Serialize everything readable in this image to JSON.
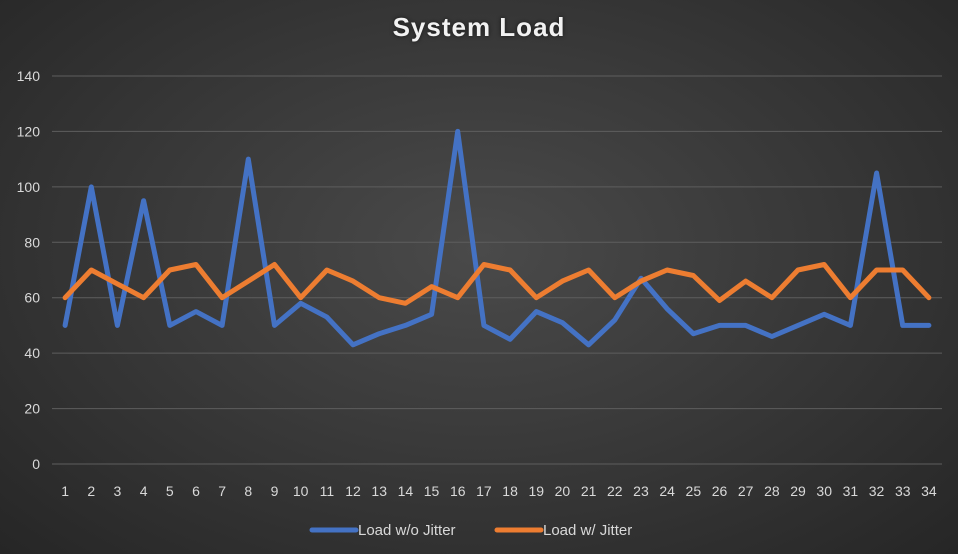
{
  "chart_data": {
    "type": "line",
    "title": "System Load",
    "xlabel": "",
    "ylabel": "",
    "ylim": [
      0,
      140
    ],
    "yticks": [
      0,
      20,
      40,
      60,
      80,
      100,
      120,
      140
    ],
    "categories": [
      "1",
      "2",
      "3",
      "4",
      "5",
      "6",
      "7",
      "8",
      "9",
      "10",
      "11",
      "12",
      "13",
      "14",
      "15",
      "16",
      "17",
      "18",
      "19",
      "20",
      "21",
      "22",
      "23",
      "24",
      "25",
      "26",
      "27",
      "28",
      "29",
      "30",
      "31",
      "32",
      "33",
      "34"
    ],
    "grid": true,
    "legend_position": "bottom",
    "series": [
      {
        "name": "Load w/o Jitter",
        "color": "#4472c4",
        "values": [
          50,
          100,
          50,
          95,
          50,
          55,
          50,
          110,
          50,
          58,
          53,
          43,
          47,
          50,
          54,
          120,
          50,
          45,
          55,
          51,
          43,
          52,
          67,
          56,
          47,
          50,
          50,
          46,
          50,
          54,
          50,
          105,
          50,
          50
        ]
      },
      {
        "name": "Load w/ Jitter",
        "color": "#ed7d31",
        "values": [
          60,
          70,
          65,
          60,
          70,
          72,
          60,
          66,
          72,
          60,
          70,
          66,
          60,
          58,
          64,
          60,
          72,
          70,
          60,
          66,
          70,
          60,
          66,
          70,
          68,
          59,
          66,
          60,
          70,
          72,
          60,
          70,
          70,
          60
        ]
      }
    ]
  }
}
